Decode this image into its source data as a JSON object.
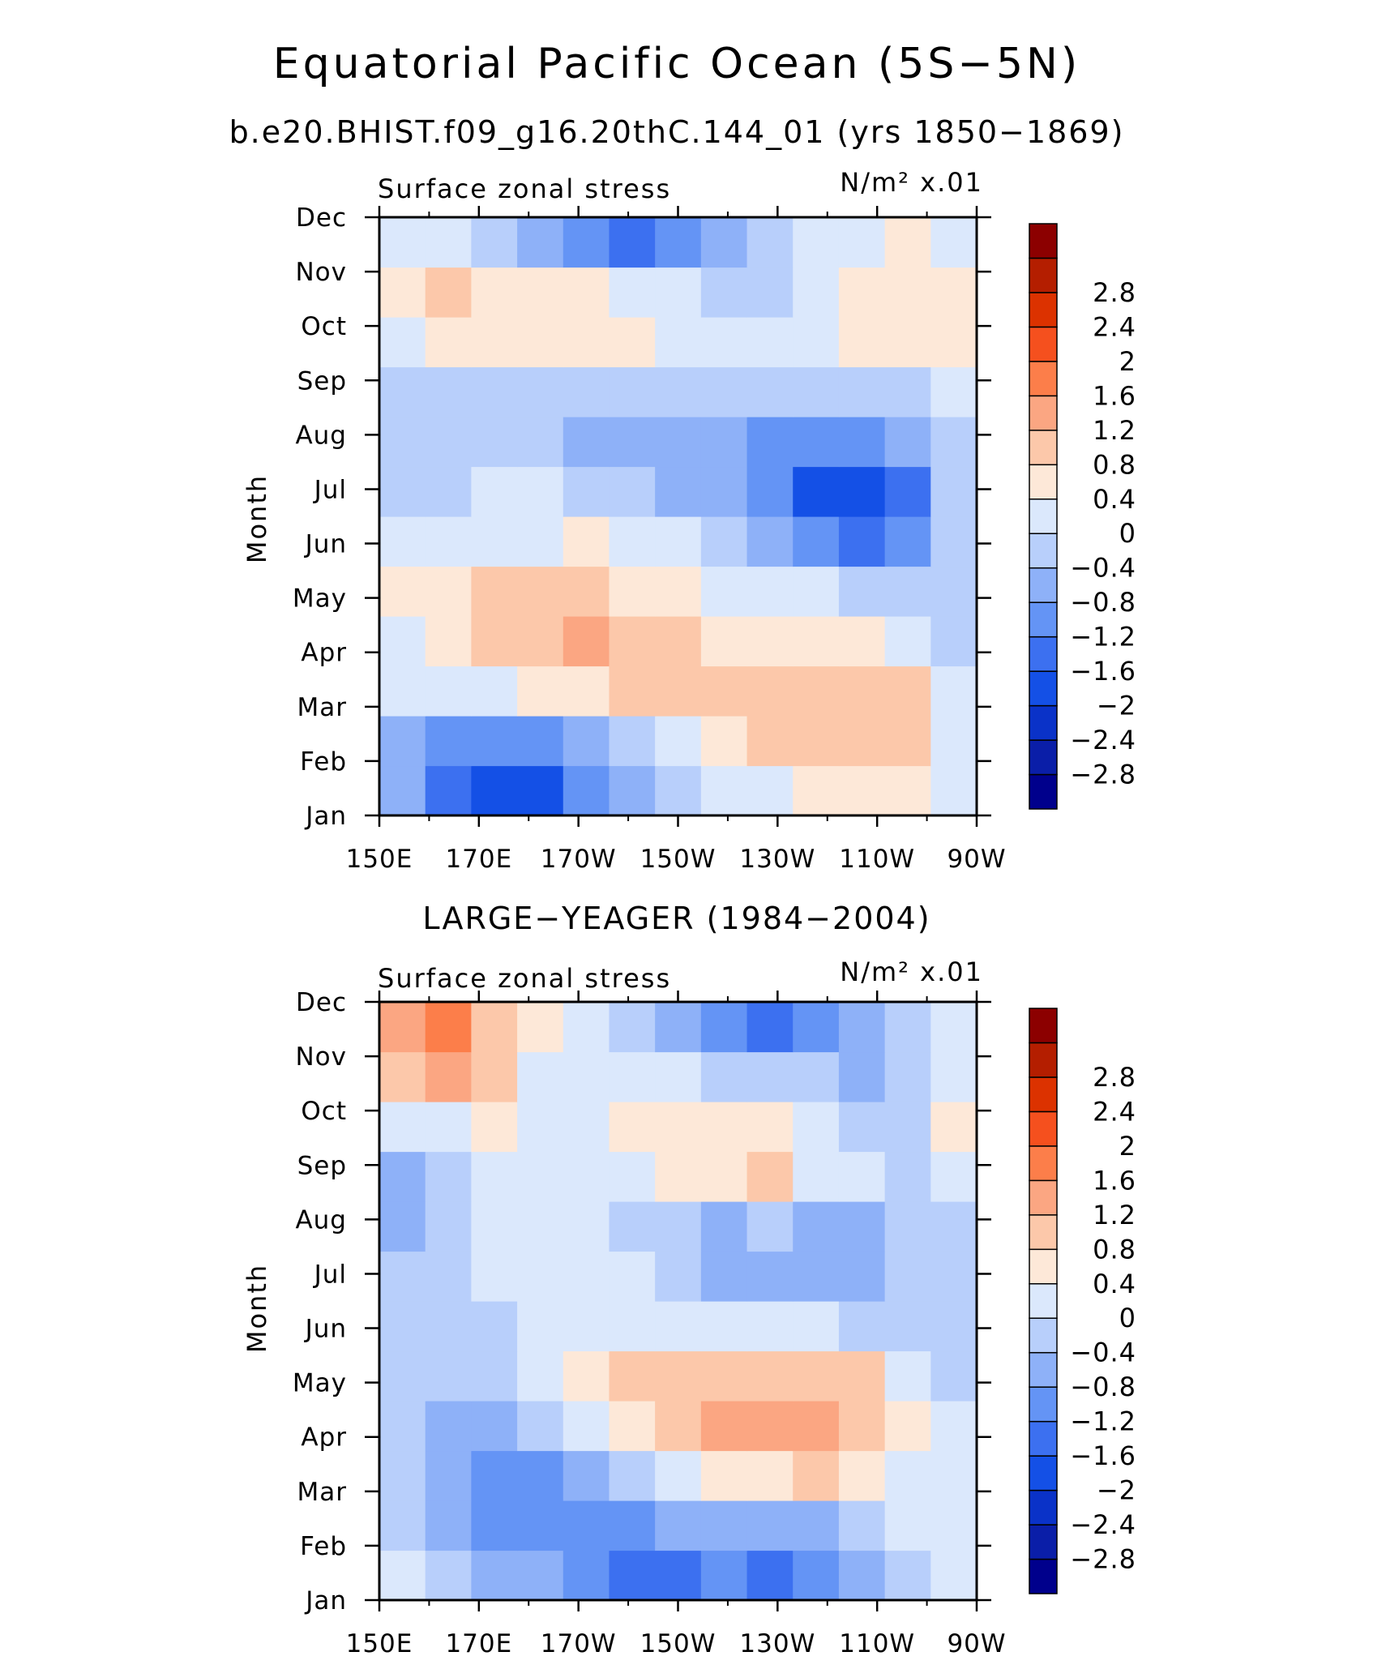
{
  "figure": {
    "title": "Equatorial Pacific Ocean (5S−5N)",
    "subtitle": "b.e20.BHIST.f09_g16.20thC.144_01 (yrs 1850−1869)"
  },
  "color_scale": {
    "levels": [
      -2.8,
      -2.4,
      -2,
      -1.6,
      -1.2,
      -0.8,
      -0.4,
      0,
      0.4,
      0.8,
      1.2,
      1.6,
      2,
      2.4,
      2.8
    ],
    "level_labels": [
      "−2.8",
      "−2.4",
      "−2",
      "−1.6",
      "−1.2",
      "−0.8",
      "−0.4",
      "0",
      "0.4",
      "0.8",
      "1.2",
      "1.6",
      "2",
      "2.4",
      "2.8"
    ],
    "colors": [
      "#00008c",
      "#0a1ea8",
      "#0a32c8",
      "#1450e6",
      "#3c70f0",
      "#6494f5",
      "#8eb1f8",
      "#b8cffb",
      "#dbe8fc",
      "#fde8d8",
      "#fcc8aa",
      "#fba682",
      "#fc7e4a",
      "#f5501e",
      "#dc3200",
      "#b41e00",
      "#8c0000"
    ]
  },
  "chart_data": [
    {
      "type": "heatmap",
      "panel_title": "",
      "title_left": "Surface zonal stress",
      "units": "N/m² x.01",
      "ylabel": "Month",
      "x_tick_labels": [
        "150E",
        "170E",
        "170W",
        "150W",
        "130W",
        "110W",
        "90W"
      ],
      "y_tick_labels": [
        "Jan",
        "Feb",
        "Mar",
        "Apr",
        "May",
        "Jun",
        "Jul",
        "Aug",
        "Sep",
        "Oct",
        "Nov",
        "Dec"
      ],
      "x": [
        150,
        160,
        170,
        180,
        190,
        200,
        210,
        220,
        230,
        240,
        250,
        260,
        270
      ],
      "values": [
        [
          -0.8,
          -1.4,
          -2.0,
          -1.8,
          -1.2,
          -0.8,
          -0.4,
          0.0,
          0.2,
          0.4,
          0.6,
          0.4,
          0.0
        ],
        [
          -0.6,
          -1.0,
          -1.2,
          -1.0,
          -0.8,
          -0.4,
          0.0,
          0.4,
          0.8,
          0.8,
          1.0,
          0.8,
          0.0
        ],
        [
          0.0,
          0.0,
          0.2,
          0.4,
          0.6,
          0.8,
          0.8,
          0.8,
          1.0,
          1.0,
          1.0,
          0.8,
          0.0
        ],
        [
          0.2,
          0.4,
          0.8,
          1.0,
          1.2,
          1.0,
          0.8,
          0.6,
          0.6,
          0.6,
          0.4,
          0.2,
          -0.2
        ],
        [
          0.4,
          0.6,
          0.8,
          0.8,
          0.8,
          0.6,
          0.4,
          0.2,
          0.0,
          0.0,
          -0.2,
          -0.2,
          -0.4
        ],
        [
          0.0,
          0.2,
          0.2,
          0.2,
          0.4,
          0.2,
          0.0,
          -0.4,
          -0.8,
          -1.2,
          -1.4,
          -1.0,
          -0.4
        ],
        [
          -0.2,
          -0.2,
          0.0,
          0.0,
          -0.2,
          -0.4,
          -0.6,
          -0.8,
          -1.2,
          -1.8,
          -2.0,
          -1.4,
          -0.2
        ],
        [
          -0.2,
          -0.2,
          -0.2,
          -0.4,
          -0.6,
          -0.6,
          -0.8,
          -0.8,
          -1.0,
          -1.2,
          -1.0,
          -0.6,
          -0.2
        ],
        [
          -0.2,
          -0.2,
          -0.2,
          -0.2,
          -0.2,
          -0.4,
          -0.4,
          -0.4,
          -0.4,
          -0.4,
          -0.2,
          -0.2,
          0.0
        ],
        [
          0.2,
          0.4,
          0.4,
          0.6,
          0.4,
          0.4,
          0.2,
          0.0,
          0.0,
          0.2,
          0.4,
          0.4,
          0.4
        ],
        [
          0.4,
          0.8,
          0.6,
          0.6,
          0.4,
          0.2,
          0.0,
          -0.2,
          -0.2,
          0.0,
          0.4,
          0.4,
          0.4
        ],
        [
          0.2,
          0.0,
          -0.4,
          -0.8,
          -1.2,
          -1.4,
          -1.2,
          -0.8,
          -0.2,
          0.0,
          0.2,
          0.4,
          0.2
        ]
      ]
    },
    {
      "type": "heatmap",
      "panel_title": "LARGE−YEAGER (1984−2004)",
      "title_left": "Surface zonal stress",
      "units": "N/m² x.01",
      "ylabel": "Month",
      "x_tick_labels": [
        "150E",
        "170E",
        "170W",
        "150W",
        "130W",
        "110W",
        "90W"
      ],
      "y_tick_labels": [
        "Jan",
        "Feb",
        "Mar",
        "Apr",
        "May",
        "Jun",
        "Jul",
        "Aug",
        "Sep",
        "Oct",
        "Nov",
        "Dec"
      ],
      "x": [
        150,
        160,
        170,
        180,
        190,
        200,
        210,
        220,
        230,
        240,
        250,
        260,
        270
      ],
      "values": [
        [
          0.0,
          -0.4,
          -0.6,
          -0.8,
          -1.2,
          -1.6,
          -1.4,
          -1.2,
          -1.4,
          -1.0,
          -0.6,
          -0.2,
          0.0
        ],
        [
          -0.2,
          -0.6,
          -1.0,
          -1.2,
          -1.2,
          -1.0,
          -0.8,
          -0.8,
          -0.8,
          -0.6,
          -0.4,
          0.0,
          0.0
        ],
        [
          -0.2,
          -0.8,
          -1.2,
          -1.2,
          -0.6,
          -0.2,
          0.2,
          0.4,
          0.6,
          0.8,
          0.6,
          0.2,
          0.0
        ],
        [
          -0.4,
          -0.6,
          -0.8,
          -0.4,
          0.0,
          0.6,
          1.0,
          1.2,
          1.4,
          1.4,
          1.0,
          0.4,
          0.0
        ],
        [
          -0.4,
          -0.4,
          -0.4,
          0.0,
          0.4,
          0.8,
          1.0,
          1.0,
          1.0,
          1.0,
          0.8,
          0.2,
          -0.2
        ],
        [
          -0.4,
          -0.2,
          -0.2,
          0.0,
          0.0,
          0.2,
          0.2,
          0.2,
          0.2,
          0.0,
          -0.2,
          -0.4,
          -0.4
        ],
        [
          -0.4,
          -0.4,
          0.0,
          0.0,
          0.0,
          0.0,
          -0.4,
          -0.8,
          -0.6,
          -0.8,
          -0.8,
          -0.4,
          -0.2
        ],
        [
          -0.8,
          -0.4,
          0.0,
          0.0,
          0.0,
          -0.2,
          -0.2,
          -0.6,
          -0.4,
          -0.6,
          -0.6,
          -0.4,
          -0.2
        ],
        [
          -0.6,
          -0.2,
          0.0,
          0.0,
          0.0,
          0.2,
          0.4,
          0.6,
          0.8,
          0.2,
          0.0,
          -0.2,
          0.0
        ],
        [
          0.0,
          0.2,
          0.4,
          0.0,
          0.0,
          0.4,
          0.6,
          0.6,
          0.4,
          0.0,
          -0.2,
          -0.2,
          0.4
        ],
        [
          1.0,
          1.4,
          0.8,
          0.2,
          0.0,
          0.0,
          0.2,
          -0.2,
          -0.4,
          -0.4,
          -0.6,
          -0.2,
          0.0
        ],
        [
          1.2,
          1.6,
          1.0,
          0.4,
          0.0,
          -0.4,
          -0.8,
          -1.2,
          -1.6,
          -1.2,
          -0.6,
          -0.2,
          0.0
        ]
      ]
    }
  ]
}
